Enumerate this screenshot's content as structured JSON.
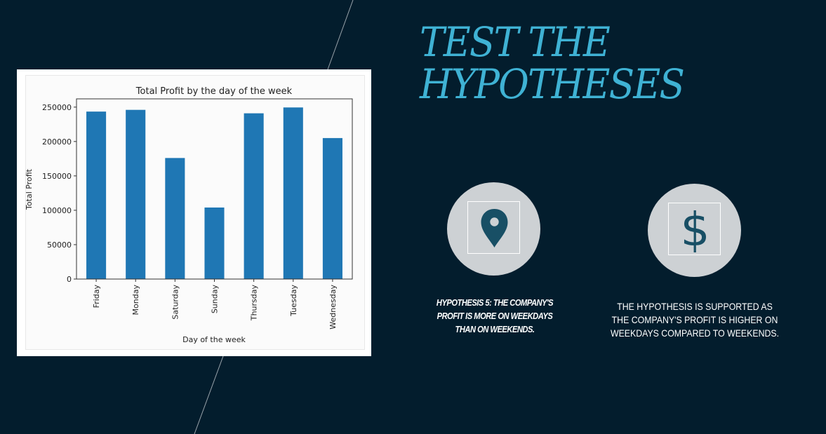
{
  "slide": {
    "title_line1": "TEST THE",
    "title_line2": "HYPOTHESES",
    "hypothesis": "HYPOTHESIS 5: THE COMPANY'S PROFIT IS MORE ON WEEKDAYS THAN ON WEEKENDS.",
    "result": "THE HYPOTHESIS IS SUPPORTED AS THE COMPANY'S PROFIT IS HIGHER ON WEEKDAYS COMPARED TO WEEKENDS.",
    "icons": {
      "left": "location-pin-icon",
      "right": "dollar-sign-icon"
    },
    "dollar_glyph": "$",
    "colors": {
      "background": "#031d2d",
      "title": "#3fb2d4",
      "icon_circle": "#cdd1d4",
      "icon_glyph": "#184f65",
      "bar": "#1f77b4"
    }
  },
  "chart_data": {
    "type": "bar",
    "title": "Total Profit by the day of the week",
    "xlabel": "Day of the week",
    "ylabel": "Total Profit",
    "categories": [
      "Friday",
      "Monday",
      "Saturday",
      "Sunday",
      "Thursday",
      "Tuesday",
      "Wednesday"
    ],
    "values": [
      243500,
      246000,
      176000,
      104000,
      241000,
      249500,
      205000
    ],
    "ylim": [
      0,
      262000
    ],
    "yticks": [
      0,
      50000,
      100000,
      150000,
      200000,
      250000
    ],
    "grid": false,
    "legend": "none"
  }
}
